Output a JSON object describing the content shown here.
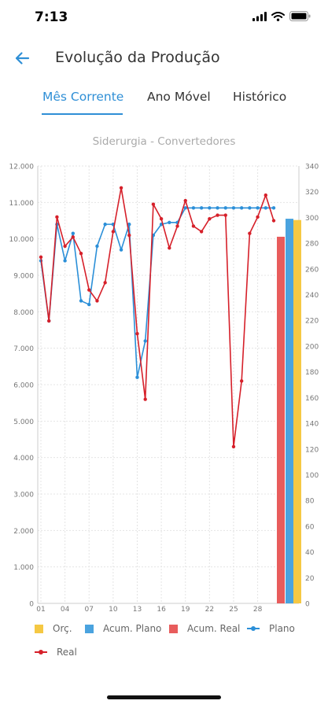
{
  "status": {
    "time": "7:13"
  },
  "header": {
    "title": "Evolução da Produção"
  },
  "tabs": [
    {
      "label": "Mês Corrente",
      "active": true
    },
    {
      "label": "Ano Móvel",
      "active": false
    },
    {
      "label": "Histórico",
      "active": false
    }
  ],
  "icons": {
    "back": "arrow-left-icon",
    "wifi": "wifi-icon",
    "signal": "signal-icon",
    "battery": "battery-icon"
  },
  "colors": {
    "accent": "#2f8fd6",
    "orc": "#f5c843",
    "acum_plano": "#4aa3df",
    "acum_real": "#e85c5c",
    "plano": "#2b8fd8",
    "real": "#d6202a"
  },
  "chart_data": {
    "type": "line",
    "title": "Siderurgia - Convertedores",
    "x_tick_labels": [
      "01",
      "04",
      "07",
      "10",
      "13",
      "16",
      "19",
      "22",
      "25",
      "28"
    ],
    "y_left": {
      "min": 0,
      "max": 12000,
      "ticks": [
        "0",
        "1.000",
        "2.000",
        "3.000",
        "4.000",
        "5.000",
        "6.000",
        "7.000",
        "8.000",
        "9.000",
        "10.000",
        "11.000",
        "12.000"
      ]
    },
    "y_right": {
      "min": 0,
      "max": 340,
      "ticks": [
        "0",
        "20",
        "40",
        "60",
        "80",
        "100",
        "120",
        "140",
        "160",
        "180",
        "200",
        "220",
        "240",
        "260",
        "280",
        "300",
        "320",
        "340"
      ]
    },
    "grid": true,
    "legend_position": "bottom",
    "series": [
      {
        "name": "Plano",
        "type": "line",
        "color": "#2b8fd8",
        "x": [
          1,
          2,
          3,
          4,
          5,
          6,
          7,
          8,
          9,
          10,
          11,
          12,
          13,
          14,
          15,
          16,
          17,
          18,
          19,
          20,
          21,
          22,
          23,
          24,
          25,
          26,
          27,
          28,
          29,
          30
        ],
        "y": [
          9400,
          7750,
          10400,
          9400,
          10150,
          8300,
          8200,
          9800,
          10400,
          10400,
          9700,
          10400,
          6200,
          7200,
          10100,
          10400,
          10450,
          10450,
          10850,
          10850,
          10850,
          10850,
          10850,
          10850,
          10850,
          10850,
          10850,
          10850,
          10850,
          10850
        ]
      },
      {
        "name": "Real",
        "type": "line",
        "color": "#d6202a",
        "x": [
          1,
          2,
          3,
          4,
          5,
          6,
          7,
          8,
          9,
          10,
          11,
          12,
          13,
          14,
          15,
          16,
          17,
          18,
          19,
          20,
          21,
          22,
          23,
          24,
          25,
          26,
          27,
          28,
          29,
          30
        ],
        "y": [
          9500,
          7750,
          10600,
          9800,
          10050,
          9600,
          8600,
          8300,
          8800,
          10200,
          11400,
          10100,
          7400,
          5600,
          10950,
          10550,
          9750,
          10350,
          11050,
          10350,
          10200,
          10550,
          10650,
          10650,
          4300,
          6100,
          10150,
          10600,
          11200,
          10500
        ]
      },
      {
        "name": "Orç.",
        "type": "bar",
        "color": "#f5c843",
        "axis": "right",
        "value": 298
      },
      {
        "name": "Acum. Plano",
        "type": "bar",
        "color": "#4aa3df",
        "axis": "right",
        "value": 299
      },
      {
        "name": "Acum. Real",
        "type": "bar",
        "color": "#e85c5c",
        "axis": "right",
        "value": 285
      }
    ]
  }
}
